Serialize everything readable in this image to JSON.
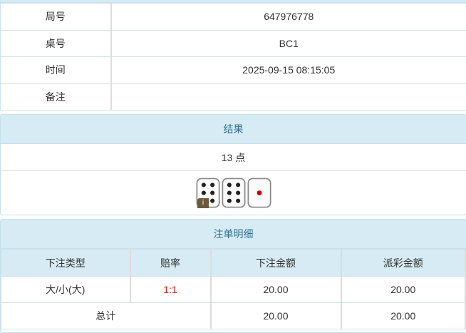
{
  "info": {
    "rows": [
      {
        "label": "局号",
        "value": "647976778"
      },
      {
        "label": "桌号",
        "value": "BC1"
      },
      {
        "label": "时间",
        "value": "2025-09-15 08:15:05"
      },
      {
        "label": "备注",
        "value": ""
      }
    ]
  },
  "result": {
    "title": "结果",
    "points": "13 点",
    "dice": [
      6,
      6,
      1
    ],
    "badge": "i"
  },
  "bets": {
    "title": "注单明细",
    "headers": [
      "下注类型",
      "赔率",
      "下注金额",
      "派彩金额"
    ],
    "rows": [
      {
        "type": "大/小(大)",
        "odds": "1:1",
        "amount": "20.00",
        "payout": "20.00"
      }
    ],
    "total": {
      "label": "总计",
      "amount": "20.00",
      "payout": "20.00"
    },
    "odds_color": "#e02020"
  }
}
